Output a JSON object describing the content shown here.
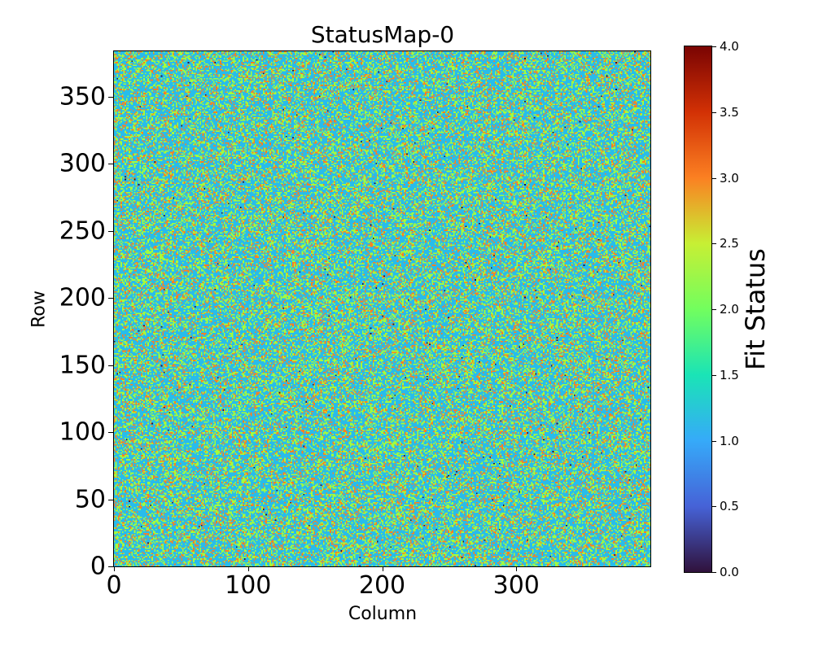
{
  "chart_data": {
    "type": "heatmap",
    "title": "StatusMap-0",
    "xlabel": "Column",
    "ylabel": "Row",
    "colorbar_label": "Fit Status",
    "colormap": "turbo",
    "xlim": [
      0,
      400
    ],
    "ylim": [
      0,
      384
    ],
    "clim": [
      0,
      4
    ],
    "xticks": [
      "0",
      "100",
      "200",
      "300"
    ],
    "xtick_values": [
      0,
      100,
      200,
      300
    ],
    "yticks": [
      "0",
      "50",
      "100",
      "150",
      "200",
      "250",
      "300",
      "350"
    ],
    "ytick_values": [
      0,
      50,
      100,
      150,
      200,
      250,
      300,
      350
    ],
    "cticks": [
      "0.0",
      "0.5",
      "1.0",
      "1.5",
      "2.0",
      "2.5",
      "3.0",
      "3.5",
      "4.0"
    ],
    "ctick_values": [
      0,
      0.5,
      1,
      1.5,
      2,
      2.5,
      3,
      3.5,
      4
    ],
    "status_values": [
      0,
      1,
      2,
      3
    ],
    "status_fractions": [
      0.002,
      0.6,
      0.26,
      0.138
    ],
    "status_colors": [
      "#30123b",
      "#28bceb",
      "#a4fc3c",
      "#fb8022"
    ],
    "grid": false
  }
}
